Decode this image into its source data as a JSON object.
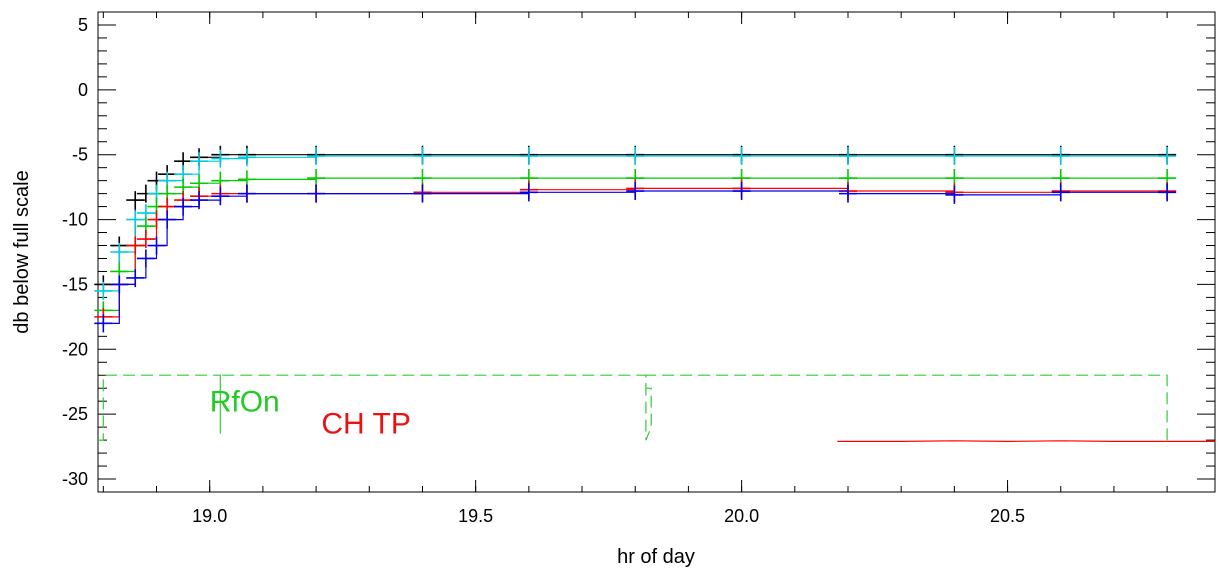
{
  "chart_data": {
    "type": "line",
    "xlabel": "hr of day",
    "ylabel": "db below full scale",
    "xlim": [
      18.79,
      20.89
    ],
    "ylim": [
      -31,
      6
    ],
    "x_ticks": [
      {
        "value": 19.0,
        "label": "19.0"
      },
      {
        "value": 19.5,
        "label": "19.5"
      },
      {
        "value": 20.0,
        "label": "20.0"
      },
      {
        "value": 20.5,
        "label": "20.5"
      }
    ],
    "y_ticks": [
      {
        "value": 5,
        "label": "5"
      },
      {
        "value": 0,
        "label": "0"
      },
      {
        "value": -5,
        "label": "-5"
      },
      {
        "value": -10,
        "label": "-10"
      },
      {
        "value": -15,
        "label": "-15"
      },
      {
        "value": -20,
        "label": "-20"
      },
      {
        "value": -25,
        "label": "-25"
      },
      {
        "value": -30,
        "label": "-30"
      }
    ],
    "grid": false,
    "series": [
      {
        "color": "#000000",
        "markers": "plus",
        "x": [
          18.8,
          18.83,
          18.86,
          18.88,
          18.9,
          18.92,
          18.95,
          18.98,
          19.02,
          19.07,
          19.2,
          19.4,
          19.6,
          19.8,
          20.0,
          20.2,
          20.4,
          20.6,
          20.8
        ],
        "y": [
          -15,
          -12,
          -8.5,
          -8,
          -7,
          -6.5,
          -5.5,
          -5.2,
          -5,
          -5,
          -5,
          -5,
          -5,
          -5,
          -5,
          -5,
          -5,
          -5,
          -5
        ]
      },
      {
        "color": "#00ccdd",
        "markers": "plus",
        "x": [
          18.8,
          18.83,
          18.86,
          18.88,
          18.9,
          18.92,
          18.95,
          18.98,
          19.02,
          19.07,
          19.2,
          19.4,
          19.6,
          19.8,
          20.0,
          20.2,
          20.4,
          20.6,
          20.8
        ],
        "y": [
          -15.5,
          -12.5,
          -10,
          -9.5,
          -8,
          -7,
          -6.5,
          -5.5,
          -5.3,
          -5.2,
          -5.1,
          -5.1,
          -5.1,
          -5.1,
          -5.1,
          -5.1,
          -5.1,
          -5.1,
          -5.1
        ]
      },
      {
        "color": "#00cc00",
        "markers": "plus",
        "x": [
          18.8,
          18.83,
          18.86,
          18.88,
          18.9,
          18.92,
          18.95,
          18.98,
          19.02,
          19.07,
          19.2,
          19.4,
          19.6,
          19.8,
          20.0,
          20.2,
          20.4,
          20.6,
          20.8
        ],
        "y": [
          -17,
          -14,
          -12,
          -10.5,
          -9,
          -8,
          -7.5,
          -7.2,
          -7,
          -6.9,
          -6.8,
          -6.8,
          -6.8,
          -6.8,
          -6.8,
          -6.8,
          -6.8,
          -6.8,
          -6.8
        ]
      },
      {
        "color": "#ff0000",
        "markers": "plus",
        "x": [
          18.8,
          18.83,
          18.86,
          18.88,
          18.9,
          18.92,
          18.95,
          18.98,
          19.02,
          19.07,
          19.2,
          19.4,
          19.6,
          19.8,
          20.0,
          20.2,
          20.4,
          20.6,
          20.8
        ],
        "y": [
          -17.5,
          -15,
          -12,
          -11.5,
          -10,
          -9,
          -8.5,
          -8.2,
          -8,
          -8,
          -8,
          -7.9,
          -7.7,
          -7.6,
          -7.6,
          -7.8,
          -7.9,
          -7.8,
          -7.8
        ]
      },
      {
        "color": "#0000ee",
        "markers": "plus",
        "x": [
          18.8,
          18.83,
          18.86,
          18.88,
          18.9,
          18.92,
          18.95,
          18.98,
          19.02,
          19.07,
          19.2,
          19.4,
          19.6,
          19.8,
          20.0,
          20.2,
          20.4,
          20.6,
          20.8
        ],
        "y": [
          -18,
          -15,
          -14.5,
          -13,
          -12,
          -10,
          -9,
          -8.5,
          -8.2,
          -8,
          -8,
          -8,
          -7.9,
          -7.8,
          -7.8,
          -8,
          -8.1,
          -7.9,
          -7.9
        ]
      },
      {
        "color": "#33cc33",
        "style": "dashed",
        "x": [
          18.79,
          18.8,
          18.8,
          19.02,
          19.02,
          19.02,
          19.02,
          19.82,
          19.82,
          19.83,
          19.83,
          19.82,
          19.82,
          20.8,
          20.8
        ],
        "y": [
          -27,
          -27,
          -22,
          -22,
          -26.5,
          -22,
          -22,
          -22,
          -27,
          -26,
          -23,
          -23,
          -22,
          -22,
          -27.5
        ]
      },
      {
        "color": "#ff0000",
        "style": "solid",
        "x": [
          20.18,
          20.3,
          20.4,
          20.5,
          20.6,
          20.7,
          20.8,
          20.89
        ],
        "y": [
          -27.1,
          -27.1,
          -27.05,
          -27.1,
          -27.05,
          -27.1,
          -27.1,
          -27.1
        ]
      }
    ],
    "annotations": [
      {
        "text": "RfOn",
        "color": "#22cc22",
        "x": 19.0,
        "y": -24.8
      },
      {
        "text": "CH TP",
        "color": "#ee1111",
        "x": 19.21,
        "y": -26.5
      }
    ]
  }
}
